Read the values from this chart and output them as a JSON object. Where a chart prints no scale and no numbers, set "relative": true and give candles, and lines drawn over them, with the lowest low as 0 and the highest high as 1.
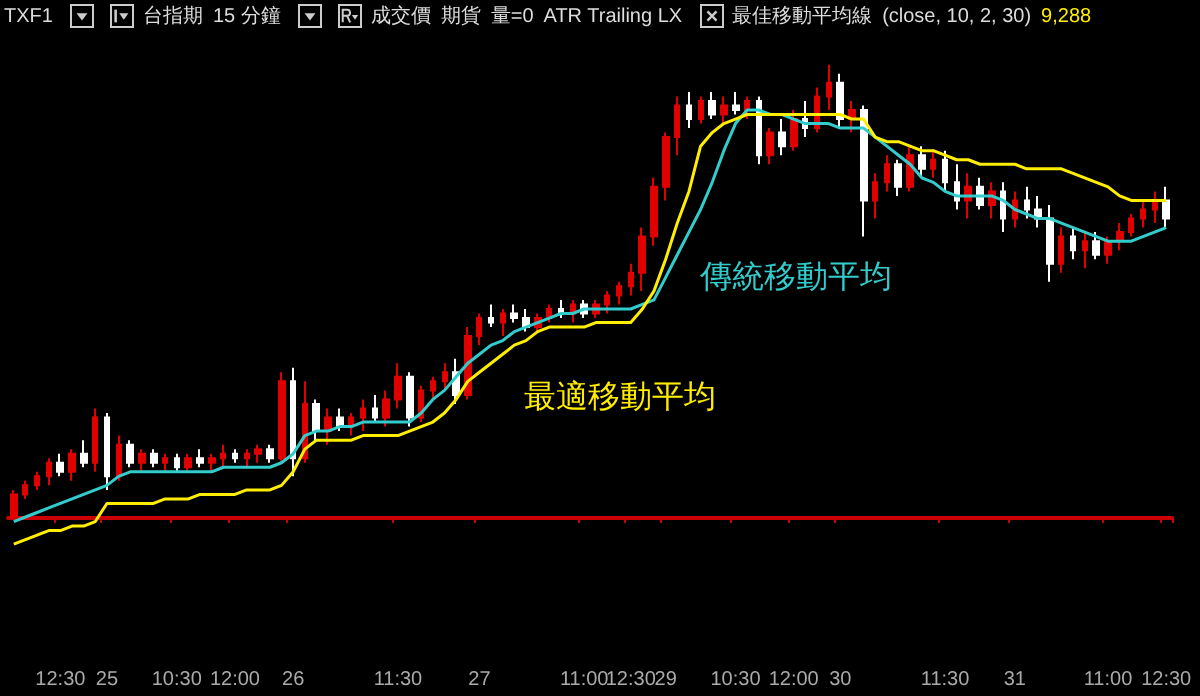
{
  "chart_data": {
    "type": "candlestick",
    "relative": true,
    "annotations": [
      "TXF1",
      "台指期",
      "15 分鐘",
      "成交價",
      "期貨",
      "量=0",
      "ATR Trailing LX",
      "最佳移動平均線",
      "(close, 10, 2, 30)",
      "9,288"
    ],
    "categories": [
      null,
      null,
      null,
      null,
      "12:30",
      null,
      null,
      null,
      "25",
      null,
      null,
      null,
      null,
      null,
      "10:30",
      null,
      null,
      null,
      null,
      "12:00",
      null,
      null,
      null,
      null,
      "26",
      null,
      null,
      null,
      null,
      null,
      null,
      null,
      null,
      "11:30",
      null,
      null,
      null,
      null,
      null,
      null,
      "27",
      null,
      null,
      null,
      null,
      null,
      null,
      null,
      null,
      "11:00",
      null,
      null,
      null,
      "12:30",
      null,
      null,
      "29",
      null,
      null,
      null,
      null,
      null,
      "10:30",
      null,
      null,
      null,
      null,
      "12:00",
      null,
      null,
      null,
      "30",
      null,
      null,
      null,
      null,
      null,
      null,
      null,
      null,
      "11:30",
      null,
      null,
      null,
      null,
      null,
      "31",
      null,
      null,
      null,
      null,
      null,
      null,
      null,
      "11:00",
      null,
      null,
      null,
      null,
      "12:30"
    ],
    "ohlc": [
      [
        0.0,
        0.06,
        0.0,
        0.05
      ],
      [
        0.05,
        0.08,
        0.04,
        0.07
      ],
      [
        0.07,
        0.1,
        0.06,
        0.09
      ],
      [
        0.09,
        0.13,
        0.07,
        0.12
      ],
      [
        0.12,
        0.14,
        0.09,
        0.1
      ],
      [
        0.1,
        0.15,
        0.08,
        0.14
      ],
      [
        0.14,
        0.17,
        0.11,
        0.12
      ],
      [
        0.12,
        0.24,
        0.1,
        0.22
      ],
      [
        0.22,
        0.23,
        0.06,
        0.09
      ],
      [
        0.09,
        0.18,
        0.08,
        0.16
      ],
      [
        0.16,
        0.17,
        0.11,
        0.12
      ],
      [
        0.12,
        0.15,
        0.1,
        0.14
      ],
      [
        0.14,
        0.15,
        0.11,
        0.12
      ],
      [
        0.12,
        0.14,
        0.1,
        0.13
      ],
      [
        0.13,
        0.14,
        0.1,
        0.11
      ],
      [
        0.11,
        0.14,
        0.1,
        0.13
      ],
      [
        0.13,
        0.15,
        0.11,
        0.12
      ],
      [
        0.12,
        0.14,
        0.1,
        0.13
      ],
      [
        0.13,
        0.16,
        0.11,
        0.14
      ],
      [
        0.14,
        0.15,
        0.12,
        0.13
      ],
      [
        0.13,
        0.15,
        0.11,
        0.14
      ],
      [
        0.14,
        0.16,
        0.12,
        0.15
      ],
      [
        0.15,
        0.16,
        0.12,
        0.13
      ],
      [
        0.13,
        0.32,
        0.12,
        0.3
      ],
      [
        0.3,
        0.33,
        0.09,
        0.13
      ],
      [
        0.13,
        0.3,
        0.12,
        0.25
      ],
      [
        0.25,
        0.26,
        0.17,
        0.19
      ],
      [
        0.19,
        0.24,
        0.16,
        0.22
      ],
      [
        0.22,
        0.24,
        0.19,
        0.2
      ],
      [
        0.2,
        0.23,
        0.18,
        0.22
      ],
      [
        0.22,
        0.26,
        0.19,
        0.24
      ],
      [
        0.24,
        0.27,
        0.21,
        0.22
      ],
      [
        0.22,
        0.28,
        0.2,
        0.26
      ],
      [
        0.26,
        0.34,
        0.24,
        0.31
      ],
      [
        0.31,
        0.32,
        0.2,
        0.22
      ],
      [
        0.22,
        0.29,
        0.21,
        0.28
      ],
      [
        0.28,
        0.31,
        0.26,
        0.3
      ],
      [
        0.3,
        0.34,
        0.28,
        0.32
      ],
      [
        0.32,
        0.35,
        0.25,
        0.27
      ],
      [
        0.27,
        0.42,
        0.26,
        0.4
      ],
      [
        0.4,
        0.45,
        0.38,
        0.44
      ],
      [
        0.44,
        0.47,
        0.42,
        0.43
      ],
      [
        0.43,
        0.46,
        0.4,
        0.45
      ],
      [
        0.45,
        0.47,
        0.43,
        0.44
      ],
      [
        0.44,
        0.46,
        0.41,
        0.42
      ],
      [
        0.42,
        0.45,
        0.41,
        0.44
      ],
      [
        0.44,
        0.47,
        0.43,
        0.46
      ],
      [
        0.46,
        0.48,
        0.44,
        0.45
      ],
      [
        0.45,
        0.48,
        0.43,
        0.47
      ],
      [
        0.47,
        0.48,
        0.44,
        0.45
      ],
      [
        0.45,
        0.48,
        0.44,
        0.47
      ],
      [
        0.47,
        0.5,
        0.45,
        0.49
      ],
      [
        0.49,
        0.52,
        0.47,
        0.51
      ],
      [
        0.51,
        0.56,
        0.49,
        0.54
      ],
      [
        0.54,
        0.64,
        0.5,
        0.62
      ],
      [
        0.62,
        0.75,
        0.6,
        0.73
      ],
      [
        0.73,
        0.85,
        0.7,
        0.84
      ],
      [
        0.84,
        0.93,
        0.8,
        0.91
      ],
      [
        0.91,
        0.94,
        0.86,
        0.88
      ],
      [
        0.88,
        0.93,
        0.87,
        0.92
      ],
      [
        0.92,
        0.94,
        0.88,
        0.89
      ],
      [
        0.89,
        0.93,
        0.87,
        0.91
      ],
      [
        0.91,
        0.94,
        0.89,
        0.9
      ],
      [
        0.9,
        0.93,
        0.88,
        0.92
      ],
      [
        0.92,
        0.93,
        0.78,
        0.8
      ],
      [
        0.8,
        0.86,
        0.78,
        0.85
      ],
      [
        0.85,
        0.88,
        0.8,
        0.82
      ],
      [
        0.82,
        0.9,
        0.81,
        0.88
      ],
      [
        0.88,
        0.92,
        0.84,
        0.86
      ],
      [
        0.86,
        0.95,
        0.85,
        0.93
      ],
      [
        0.93,
        1.0,
        0.9,
        0.96
      ],
      [
        0.96,
        0.98,
        0.86,
        0.88
      ],
      [
        0.88,
        0.92,
        0.85,
        0.9
      ],
      [
        0.9,
        0.91,
        0.62,
        0.7
      ],
      [
        0.7,
        0.76,
        0.66,
        0.74
      ],
      [
        0.74,
        0.8,
        0.72,
        0.78
      ],
      [
        0.78,
        0.79,
        0.71,
        0.73
      ],
      [
        0.73,
        0.82,
        0.72,
        0.8
      ],
      [
        0.8,
        0.82,
        0.75,
        0.77
      ],
      [
        0.77,
        0.81,
        0.75,
        0.79
      ],
      [
        0.79,
        0.81,
        0.72,
        0.74
      ],
      [
        0.74,
        0.78,
        0.68,
        0.7
      ],
      [
        0.7,
        0.76,
        0.66,
        0.73
      ],
      [
        0.73,
        0.75,
        0.68,
        0.69
      ],
      [
        0.69,
        0.74,
        0.66,
        0.72
      ],
      [
        0.72,
        0.74,
        0.63,
        0.66
      ],
      [
        0.66,
        0.72,
        0.64,
        0.7
      ],
      [
        0.7,
        0.73,
        0.66,
        0.68
      ],
      [
        0.68,
        0.71,
        0.64,
        0.66
      ],
      [
        0.66,
        0.69,
        0.52,
        0.56
      ],
      [
        0.56,
        0.64,
        0.54,
        0.62
      ],
      [
        0.62,
        0.64,
        0.57,
        0.59
      ],
      [
        0.59,
        0.63,
        0.55,
        0.61
      ],
      [
        0.61,
        0.63,
        0.57,
        0.58
      ],
      [
        0.58,
        0.62,
        0.56,
        0.61
      ],
      [
        0.61,
        0.65,
        0.59,
        0.63
      ],
      [
        0.63,
        0.67,
        0.62,
        0.66
      ],
      [
        0.66,
        0.7,
        0.64,
        0.68
      ],
      [
        0.68,
        0.72,
        0.65,
        0.7
      ],
      [
        0.7,
        0.73,
        0.64,
        0.66
      ]
    ],
    "series": [
      {
        "type": "line",
        "name": "傳統移動平均",
        "color": "#33cccc",
        "values": [
          -0.01,
          0.0,
          0.01,
          0.02,
          0.03,
          0.04,
          0.05,
          0.06,
          0.07,
          0.09,
          0.1,
          0.1,
          0.1,
          0.1,
          0.1,
          0.1,
          0.1,
          0.1,
          0.11,
          0.11,
          0.11,
          0.11,
          0.11,
          0.12,
          0.14,
          0.18,
          0.19,
          0.19,
          0.2,
          0.2,
          0.21,
          0.21,
          0.21,
          0.21,
          0.21,
          0.23,
          0.26,
          0.28,
          0.31,
          0.34,
          0.36,
          0.38,
          0.39,
          0.41,
          0.42,
          0.43,
          0.44,
          0.45,
          0.45,
          0.46,
          0.46,
          0.46,
          0.46,
          0.46,
          0.47,
          0.48,
          0.53,
          0.58,
          0.63,
          0.68,
          0.74,
          0.81,
          0.87,
          0.9,
          0.9,
          0.89,
          0.89,
          0.88,
          0.87,
          0.87,
          0.87,
          0.86,
          0.86,
          0.86,
          0.84,
          0.82,
          0.8,
          0.78,
          0.75,
          0.74,
          0.72,
          0.71,
          0.71,
          0.71,
          0.71,
          0.7,
          0.68,
          0.67,
          0.66,
          0.66,
          0.65,
          0.64,
          0.63,
          0.62,
          0.61,
          0.61,
          0.61,
          0.62,
          0.63,
          0.64
        ]
      },
      {
        "type": "line",
        "name": "最適移動平均",
        "color": "#ffee00",
        "values": [
          -0.06,
          -0.05,
          -0.04,
          -0.03,
          -0.03,
          -0.02,
          -0.02,
          -0.01,
          0.03,
          0.03,
          0.03,
          0.03,
          0.03,
          0.04,
          0.04,
          0.04,
          0.05,
          0.05,
          0.05,
          0.05,
          0.06,
          0.06,
          0.06,
          0.07,
          0.1,
          0.15,
          0.17,
          0.17,
          0.17,
          0.17,
          0.18,
          0.18,
          0.18,
          0.18,
          0.19,
          0.2,
          0.21,
          0.23,
          0.26,
          0.3,
          0.32,
          0.34,
          0.36,
          0.38,
          0.39,
          0.41,
          0.42,
          0.42,
          0.42,
          0.42,
          0.43,
          0.43,
          0.43,
          0.43,
          0.46,
          0.5,
          0.57,
          0.65,
          0.72,
          0.82,
          0.85,
          0.87,
          0.88,
          0.89,
          0.89,
          0.89,
          0.89,
          0.89,
          0.89,
          0.89,
          0.89,
          0.89,
          0.88,
          0.88,
          0.84,
          0.83,
          0.83,
          0.82,
          0.81,
          0.81,
          0.8,
          0.79,
          0.79,
          0.78,
          0.78,
          0.78,
          0.78,
          0.77,
          0.77,
          0.77,
          0.77,
          0.76,
          0.75,
          0.74,
          0.73,
          0.71,
          0.7,
          0.7,
          0.7,
          0.7
        ]
      }
    ]
  }
}
